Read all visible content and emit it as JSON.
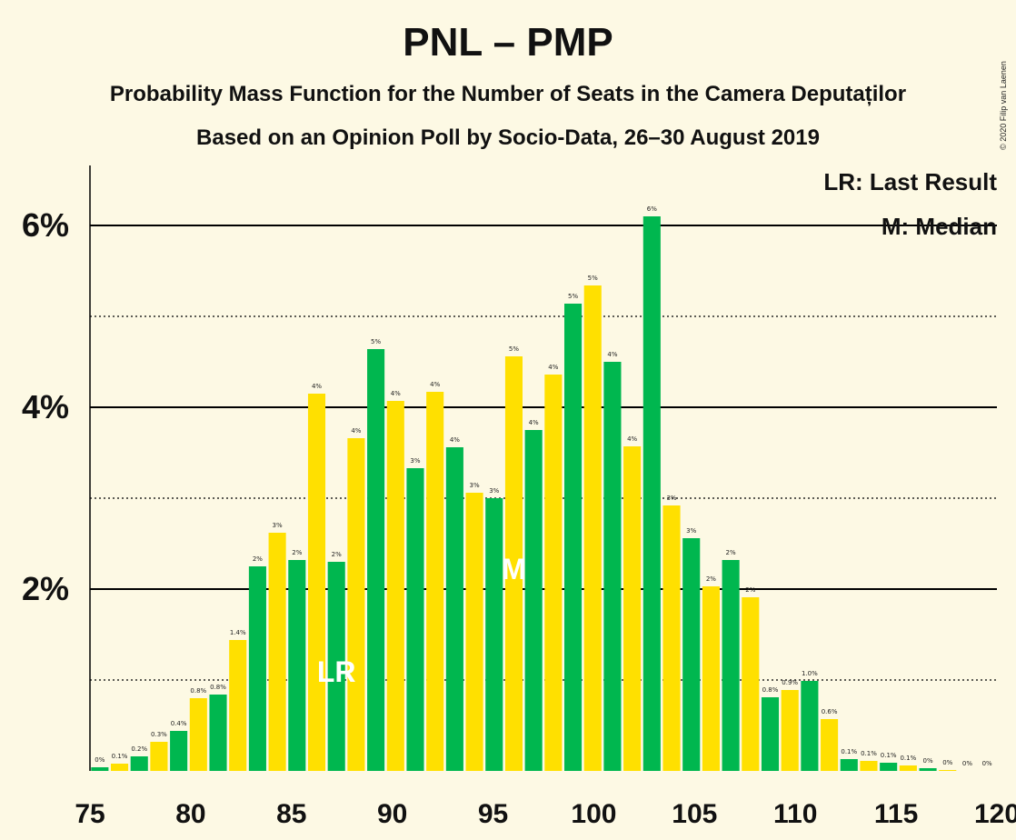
{
  "title": "PNL – PMP",
  "subtitle1": "Probability Mass Function for the Number of Seats in the Camera Deputaților",
  "subtitle2": "Based on an Opinion Poll by Socio-Data, 26–30 August 2019",
  "copyright": "© 2020 Filip van Laenen",
  "legend": {
    "lr": "LR: Last Result",
    "median": "M: Median"
  },
  "colors": {
    "green": "#00b74f",
    "yellow": "#ffe000",
    "background": "#fdf9e4"
  },
  "chart_data": {
    "type": "bar",
    "xlim": [
      75,
      120
    ],
    "ylim": [
      0,
      6.6
    ],
    "y_major_ticks": [
      2,
      4,
      6
    ],
    "y_minor_gridlines": [
      1,
      3,
      5
    ],
    "y_tick_labels": [
      "2%",
      "4%",
      "6%"
    ],
    "x_tick_labels": [
      "75",
      "80",
      "85",
      "90",
      "95",
      "100",
      "105",
      "110",
      "115",
      "120"
    ],
    "x": [
      75,
      76,
      77,
      78,
      79,
      80,
      81,
      82,
      83,
      84,
      85,
      86,
      87,
      88,
      89,
      90,
      91,
      92,
      93,
      94,
      95,
      96,
      97,
      98,
      99,
      100,
      101,
      102,
      103,
      104,
      105,
      106,
      107,
      108,
      109,
      110,
      111,
      112,
      113,
      114,
      115,
      116,
      117,
      118,
      119,
      120
    ],
    "values": [
      0.04,
      0.08,
      0.16,
      0.32,
      0.44,
      0.8,
      0.84,
      1.44,
      2.25,
      2.62,
      2.32,
      4.15,
      2.3,
      3.66,
      4.64,
      4.07,
      3.33,
      4.17,
      3.56,
      3.06,
      3.0,
      4.56,
      3.75,
      4.36,
      5.14,
      5.34,
      4.5,
      3.57,
      6.1,
      2.92,
      2.56,
      2.03,
      2.32,
      1.91,
      0.81,
      0.89,
      0.99,
      0.57,
      0.13,
      0.11,
      0.09,
      0.06,
      0.03,
      0.01,
      0.0,
      0.0
    ],
    "data_labels": [
      "0%",
      "0.1%",
      "0.2%",
      "0.3%",
      "0.4%",
      "0.8%",
      "0.8%",
      "1.4%",
      "2%",
      "3%",
      "2%",
      "4%",
      "2%",
      "4%",
      "5%",
      "4%",
      "3%",
      "4%",
      "4%",
      "3%",
      "3%",
      "5%",
      "4%",
      "4%",
      "5%",
      "5%",
      "4%",
      "4%",
      "6%",
      "3%",
      "3%",
      "2%",
      "2%",
      "2%",
      "0.8%",
      "0.9%",
      "1.0%",
      "0.6%",
      "0.1%",
      "0.1%",
      "0.1%",
      "0.1%",
      "0%",
      "0%",
      "0%",
      "0%"
    ],
    "last_result": 87,
    "median": 96,
    "lr_marker": "LR",
    "median_marker": "M"
  }
}
